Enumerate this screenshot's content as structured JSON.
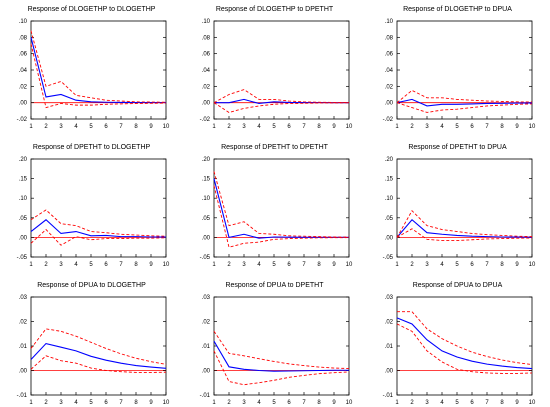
{
  "chart_data": [
    {
      "type": "line",
      "title": "Response of DLOGETHP to DLOGETHP",
      "x": [
        1,
        2,
        3,
        4,
        5,
        6,
        7,
        8,
        9,
        10
      ],
      "ylim": [
        -0.02,
        0.1
      ],
      "yticks": [
        ".10",
        ".08",
        ".06",
        ".04",
        ".02",
        ".00",
        "-.02"
      ],
      "yticks_values": [
        0.1,
        0.08,
        0.06,
        0.04,
        0.02,
        0.0,
        -0.02
      ],
      "series": [
        {
          "role": "response",
          "values": [
            0.08,
            0.007,
            0.01,
            0.003,
            0.001,
            0.0005,
            0.0003,
            0.0002,
            0.0001,
            0.0001
          ]
        },
        {
          "role": "upper",
          "values": [
            0.088,
            0.02,
            0.026,
            0.009,
            0.006,
            0.003,
            0.002,
            0.001,
            0.0008,
            0.0005
          ]
        },
        {
          "role": "lower",
          "values": [
            0.072,
            -0.006,
            -0.001,
            -0.003,
            -0.003,
            -0.002,
            -0.0015,
            -0.001,
            -0.0008,
            -0.0005
          ]
        }
      ]
    },
    {
      "type": "line",
      "title": "Response of DLOGETHP to DPETHT",
      "x": [
        1,
        2,
        3,
        4,
        5,
        6,
        7,
        8,
        9,
        10
      ],
      "ylim": [
        -0.02,
        0.1
      ],
      "yticks": [
        ".10",
        ".08",
        ".06",
        ".04",
        ".02",
        ".00",
        "-.02"
      ],
      "yticks_values": [
        0.1,
        0.08,
        0.06,
        0.04,
        0.02,
        0.0,
        -0.02
      ],
      "series": [
        {
          "role": "response",
          "values": [
            0.0,
            0.0,
            0.004,
            -0.001,
            0.001,
            0.0003,
            0.0001,
            0.0001,
            0.0,
            0.0
          ]
        },
        {
          "role": "upper",
          "values": [
            0.0,
            0.01,
            0.016,
            0.004,
            0.004,
            0.002,
            0.001,
            0.0005,
            0.0003,
            0.0002
          ]
        },
        {
          "role": "lower",
          "values": [
            0.0,
            -0.012,
            -0.007,
            -0.004,
            -0.002,
            -0.001,
            -0.0008,
            -0.0004,
            -0.0003,
            -0.0002
          ]
        }
      ]
    },
    {
      "type": "line",
      "title": "Response of DLOGETHP to DPUA",
      "x": [
        1,
        2,
        3,
        4,
        5,
        6,
        7,
        8,
        9,
        10
      ],
      "ylim": [
        -0.02,
        0.1
      ],
      "yticks": [
        ".10",
        ".08",
        ".06",
        ".04",
        ".02",
        ".00",
        "-.02"
      ],
      "yticks_values": [
        0.1,
        0.08,
        0.06,
        0.04,
        0.02,
        0.0,
        -0.02
      ],
      "series": [
        {
          "role": "response",
          "values": [
            0.0,
            0.004,
            -0.004,
            -0.002,
            -0.002,
            -0.0015,
            -0.001,
            -0.0008,
            -0.0005,
            -0.0003
          ]
        },
        {
          "role": "upper",
          "values": [
            0.0,
            0.015,
            0.006,
            0.006,
            0.004,
            0.003,
            0.002,
            0.0015,
            0.001,
            0.0008
          ]
        },
        {
          "role": "lower",
          "values": [
            0.0,
            -0.006,
            -0.012,
            -0.009,
            -0.008,
            -0.006,
            -0.004,
            -0.003,
            -0.002,
            -0.0015
          ]
        }
      ]
    },
    {
      "type": "line",
      "title": "Response of DPETHT to DLOGETHP",
      "x": [
        1,
        2,
        3,
        4,
        5,
        6,
        7,
        8,
        9,
        10
      ],
      "ylim": [
        -0.05,
        0.2
      ],
      "yticks": [
        ".20",
        ".15",
        ".10",
        ".05",
        ".00",
        "-.05"
      ],
      "yticks_values": [
        0.2,
        0.15,
        0.1,
        0.05,
        0.0,
        -0.05
      ],
      "series": [
        {
          "role": "response",
          "values": [
            0.015,
            0.045,
            0.01,
            0.015,
            0.004,
            0.005,
            0.002,
            0.002,
            0.001,
            0.001
          ]
        },
        {
          "role": "upper",
          "values": [
            0.045,
            0.07,
            0.035,
            0.03,
            0.015,
            0.012,
            0.008,
            0.006,
            0.004,
            0.003
          ]
        },
        {
          "role": "lower",
          "values": [
            -0.015,
            0.02,
            -0.02,
            0.002,
            -0.006,
            -0.003,
            -0.003,
            -0.002,
            -0.002,
            -0.001
          ]
        }
      ]
    },
    {
      "type": "line",
      "title": "Response of DPETHT to DPETHT",
      "x": [
        1,
        2,
        3,
        4,
        5,
        6,
        7,
        8,
        9,
        10
      ],
      "ylim": [
        -0.05,
        0.2
      ],
      "yticks": [
        ".20",
        ".15",
        ".10",
        ".05",
        ".00",
        "-.05"
      ],
      "yticks_values": [
        0.2,
        0.15,
        0.1,
        0.05,
        0.0,
        -0.05
      ],
      "series": [
        {
          "role": "response",
          "values": [
            0.15,
            0.0,
            0.008,
            -0.002,
            0.001,
            0.0005,
            0.0003,
            0.0002,
            0.0001,
            0.0001
          ]
        },
        {
          "role": "upper",
          "values": [
            0.168,
            0.03,
            0.04,
            0.01,
            0.008,
            0.004,
            0.003,
            0.002,
            0.001,
            0.0008
          ]
        },
        {
          "role": "lower",
          "values": [
            0.132,
            -0.025,
            -0.015,
            -0.012,
            -0.005,
            -0.003,
            -0.002,
            -0.001,
            -0.0008,
            -0.0005
          ]
        }
      ]
    },
    {
      "type": "line",
      "title": "Response of DPETHT to DPUA",
      "x": [
        1,
        2,
        3,
        4,
        5,
        6,
        7,
        8,
        9,
        10
      ],
      "ylim": [
        -0.05,
        0.2
      ],
      "yticks": [
        ".20",
        ".15",
        ".10",
        ".05",
        ".00",
        "-.05"
      ],
      "yticks_values": [
        0.2,
        0.15,
        0.1,
        0.05,
        0.0,
        -0.05
      ],
      "series": [
        {
          "role": "response",
          "values": [
            0.0,
            0.045,
            0.012,
            0.008,
            0.005,
            0.003,
            0.002,
            0.001,
            0.0008,
            0.0005
          ]
        },
        {
          "role": "upper",
          "values": [
            0.0,
            0.068,
            0.03,
            0.02,
            0.015,
            0.01,
            0.007,
            0.005,
            0.003,
            0.002
          ]
        },
        {
          "role": "lower",
          "values": [
            0.0,
            0.022,
            -0.005,
            -0.008,
            -0.008,
            -0.006,
            -0.004,
            -0.003,
            -0.002,
            -0.0015
          ]
        }
      ]
    },
    {
      "type": "line",
      "title": "Response of DPUA to DLOGETHP",
      "x": [
        1,
        2,
        3,
        4,
        5,
        6,
        7,
        8,
        9,
        10
      ],
      "ylim": [
        -0.01,
        0.03
      ],
      "yticks": [
        ".03",
        ".02",
        ".01",
        ".00",
        "-.01"
      ],
      "yticks_values": [
        0.03,
        0.02,
        0.01,
        0.0,
        -0.01
      ],
      "series": [
        {
          "role": "response",
          "values": [
            0.0045,
            0.011,
            0.0095,
            0.008,
            0.0058,
            0.0042,
            0.003,
            0.002,
            0.0014,
            0.0009
          ]
        },
        {
          "role": "upper",
          "values": [
            0.009,
            0.017,
            0.016,
            0.014,
            0.0115,
            0.009,
            0.0068,
            0.005,
            0.0036,
            0.0025
          ]
        },
        {
          "role": "lower",
          "values": [
            0.0005,
            0.006,
            0.004,
            0.003,
            0.001,
            0.0,
            -0.0005,
            -0.0008,
            -0.0008,
            -0.0007
          ]
        }
      ]
    },
    {
      "type": "line",
      "title": "Response of DPUA to DPETHT",
      "x": [
        1,
        2,
        3,
        4,
        5,
        6,
        7,
        8,
        9,
        10
      ],
      "ylim": [
        -0.01,
        0.03
      ],
      "yticks": [
        ".03",
        ".02",
        ".01",
        ".00",
        "-.01"
      ],
      "yticks_values": [
        0.03,
        0.02,
        0.01,
        0.0,
        -0.01
      ],
      "series": [
        {
          "role": "response",
          "values": [
            0.012,
            0.0015,
            0.0005,
            0.0,
            -0.0003,
            -0.0002,
            -0.0001,
            0.0,
            0.0001,
            0.0001
          ]
        },
        {
          "role": "upper",
          "values": [
            0.016,
            0.007,
            0.006,
            0.0048,
            0.0037,
            0.0027,
            0.002,
            0.0014,
            0.001,
            0.0008
          ]
        },
        {
          "role": "lower",
          "values": [
            0.008,
            -0.0045,
            -0.0058,
            -0.005,
            -0.004,
            -0.0028,
            -0.002,
            -0.0013,
            -0.0009,
            -0.0006
          ]
        }
      ]
    },
    {
      "type": "line",
      "title": "Response of DPUA to DPUA",
      "x": [
        1,
        2,
        3,
        4,
        5,
        6,
        7,
        8,
        9,
        10
      ],
      "ylim": [
        -0.01,
        0.03
      ],
      "yticks": [
        ".03",
        ".02",
        ".01",
        ".00",
        "-.01"
      ],
      "yticks_values": [
        0.03,
        0.02,
        0.01,
        0.0,
        -0.01
      ],
      "series": [
        {
          "role": "response",
          "values": [
            0.0215,
            0.019,
            0.0125,
            0.008,
            0.0055,
            0.0038,
            0.0026,
            0.0018,
            0.0012,
            0.0008
          ]
        },
        {
          "role": "upper",
          "values": [
            0.024,
            0.024,
            0.017,
            0.013,
            0.01,
            0.0075,
            0.0057,
            0.0043,
            0.0032,
            0.0024
          ]
        },
        {
          "role": "lower",
          "values": [
            0.019,
            0.016,
            0.008,
            0.0035,
            0.0005,
            -0.0005,
            -0.001,
            -0.0012,
            -0.0012,
            -0.001
          ]
        }
      ]
    }
  ],
  "colors": {
    "response": "#0000ff",
    "band": "#ff0000",
    "zero": "#ff0000",
    "axis": "#000000"
  }
}
